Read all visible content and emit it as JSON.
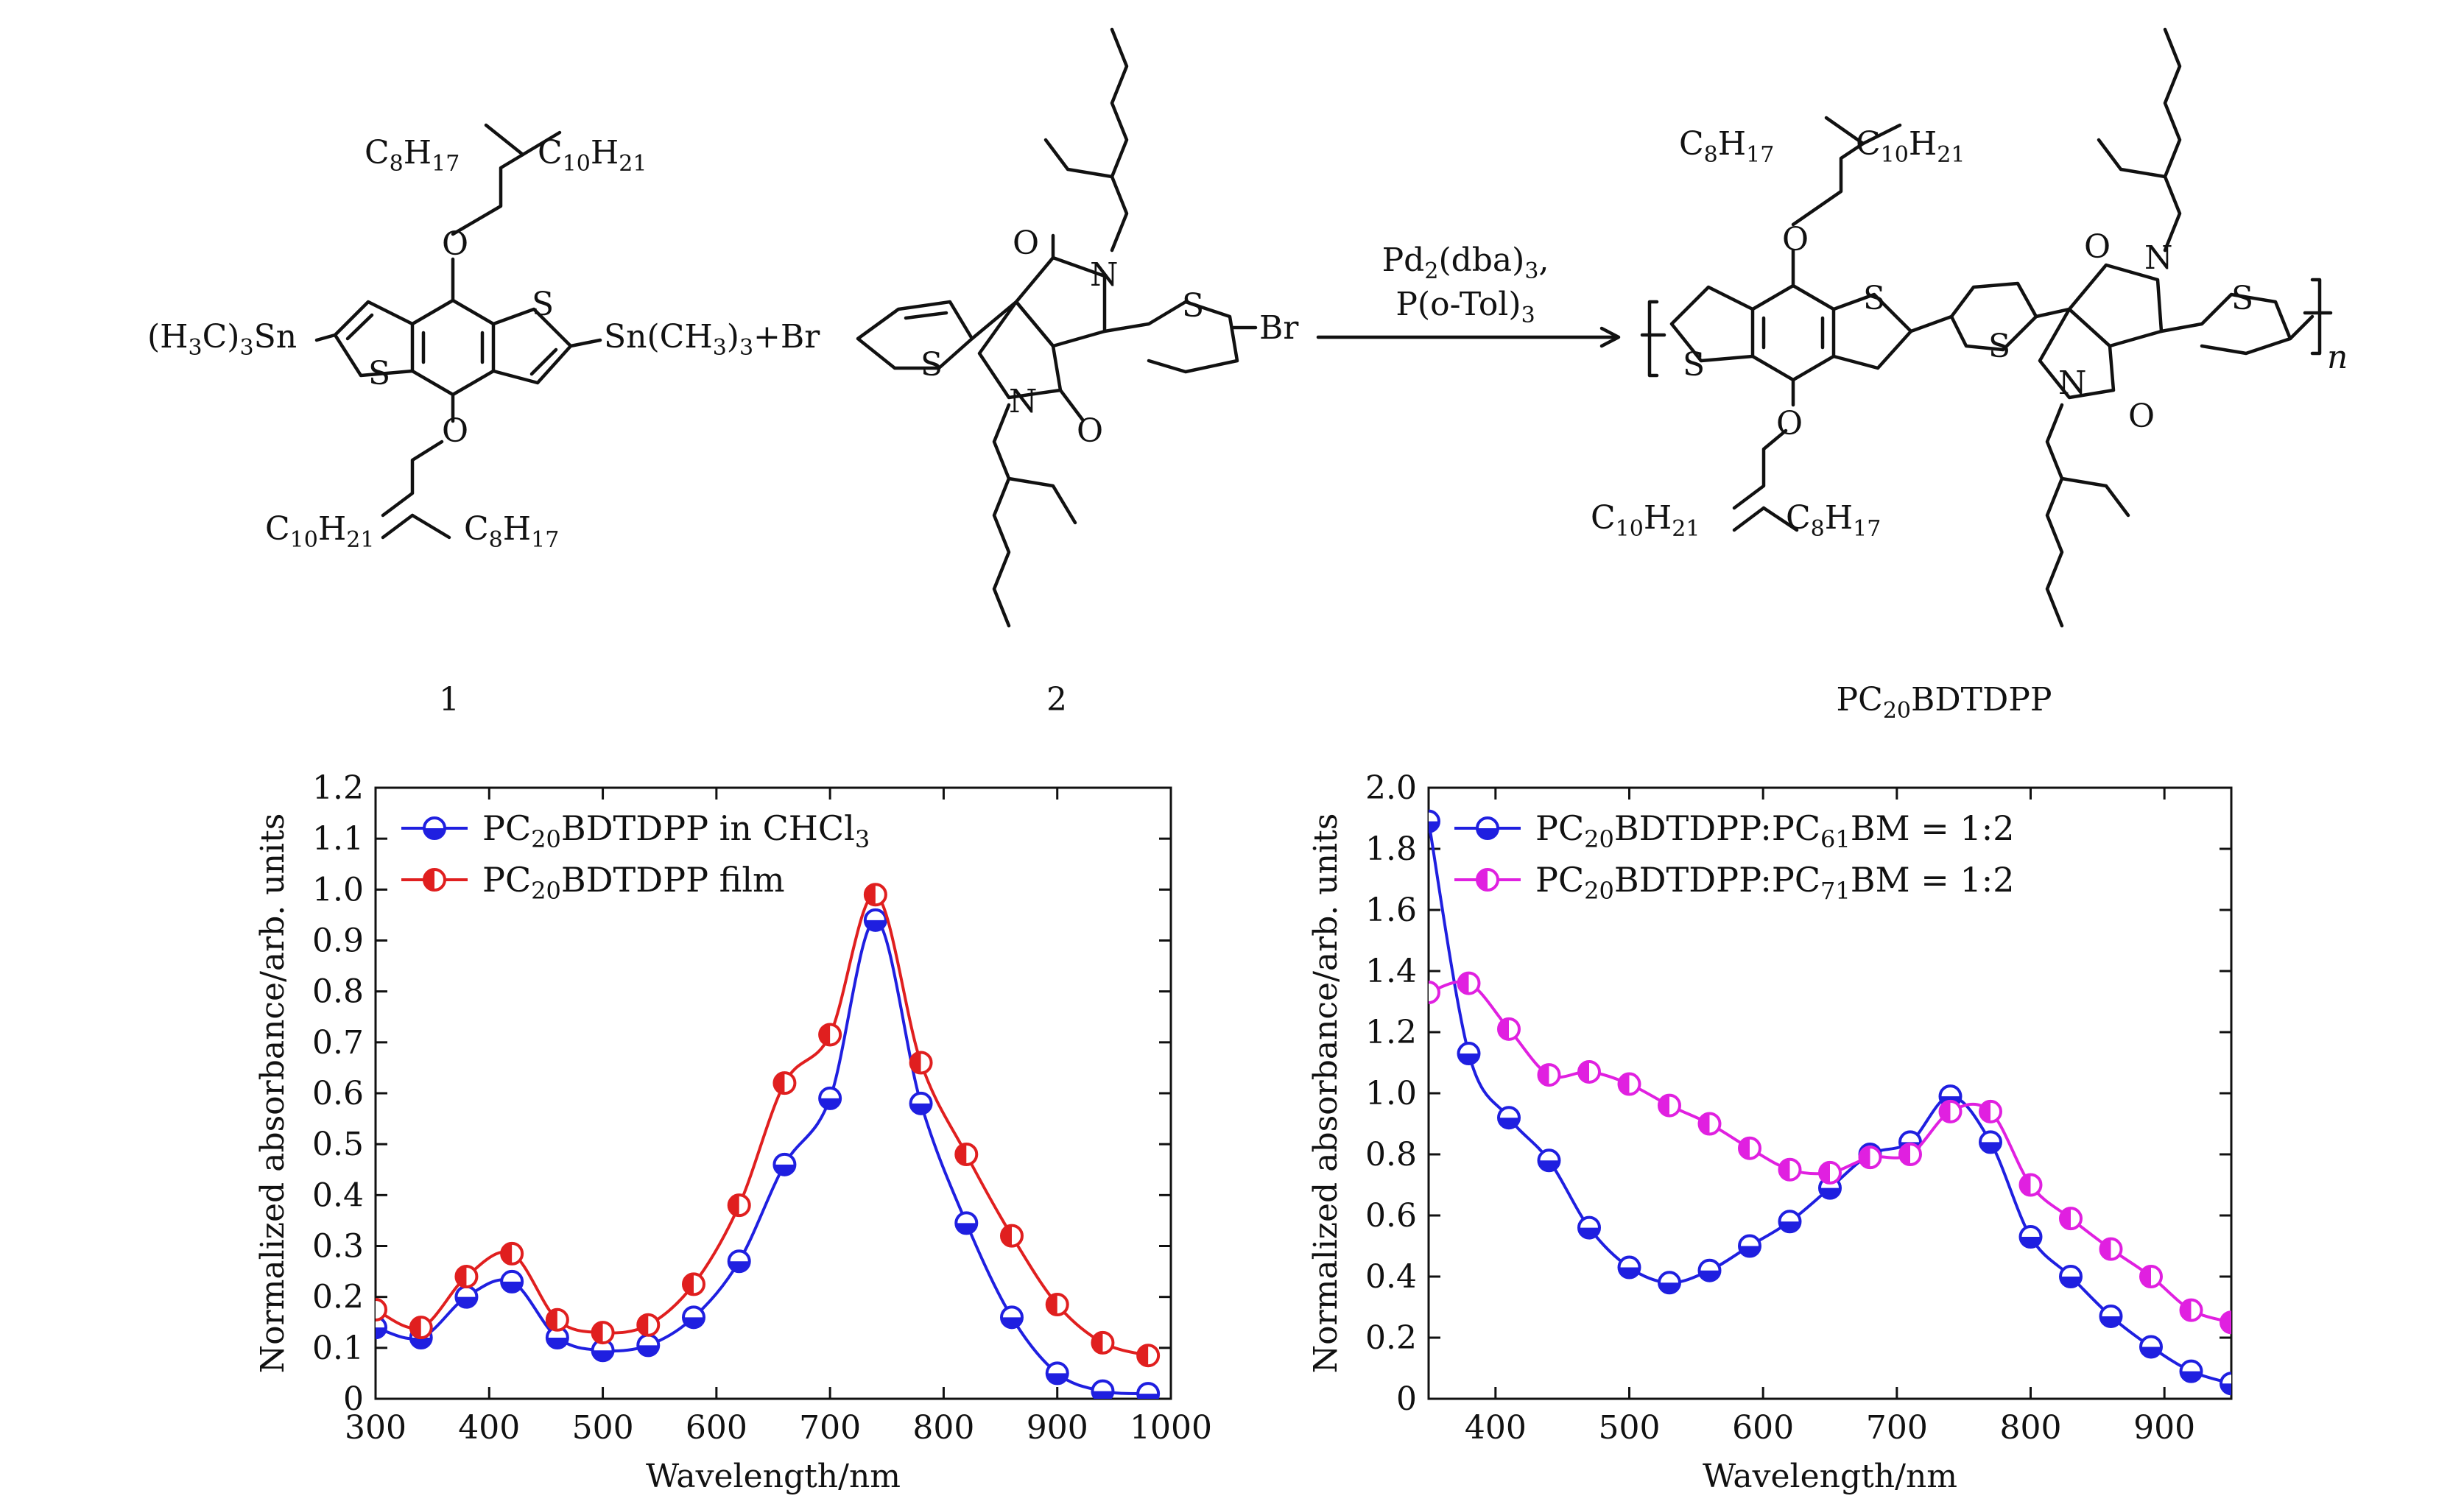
{
  "scheme": {
    "compound1_label": "1",
    "compound2_label": "2",
    "product_label": "PC20BDTDPP",
    "reagent_line1": "Pd2(dba)3,",
    "reagent_line2": "P(o-Tol)3",
    "subscript_n": "n",
    "labels": {
      "c8h17": "C8H17",
      "c10h21": "C10H21",
      "sn_left": "(H3C)3Sn",
      "sn_right": "Sn(CH3)3",
      "plus": "+",
      "br": "Br",
      "o": "O",
      "s": "S",
      "n": "N"
    }
  },
  "chart_data": [
    {
      "type": "line",
      "xlabel": "Wavelength/nm",
      "ylabel": "Normalized absorbance/arb. units",
      "xlim": [
        300,
        1000
      ],
      "ylim": [
        0,
        1.2
      ],
      "xticks": [
        300,
        400,
        500,
        600,
        700,
        800,
        900,
        1000
      ],
      "yticks": [
        0,
        0.1,
        0.2,
        0.3,
        0.4,
        0.5,
        0.6,
        0.7,
        0.8,
        0.9,
        1.0,
        1.1,
        1.2
      ],
      "legend_position": "top-left",
      "series": [
        {
          "name": "PC20BDTDPP in CHCl3",
          "color": "#1f1fe0",
          "marker": "half-filled-circle",
          "x": [
            300,
            340,
            380,
            420,
            460,
            500,
            540,
            580,
            620,
            660,
            700,
            740,
            780,
            820,
            860,
            900,
            940,
            980
          ],
          "y": [
            0.14,
            0.12,
            0.2,
            0.23,
            0.12,
            0.095,
            0.105,
            0.16,
            0.27,
            0.46,
            0.59,
            0.94,
            0.58,
            0.345,
            0.16,
            0.05,
            0.015,
            0.01
          ]
        },
        {
          "name": "PC20BDTDPP film",
          "color": "#e01f1f",
          "marker": "half-filled-circle",
          "x": [
            300,
            340,
            380,
            420,
            460,
            500,
            540,
            580,
            620,
            660,
            700,
            740,
            780,
            820,
            860,
            900,
            940,
            980
          ],
          "y": [
            0.175,
            0.14,
            0.24,
            0.285,
            0.155,
            0.13,
            0.145,
            0.225,
            0.38,
            0.62,
            0.715,
            0.99,
            0.66,
            0.48,
            0.32,
            0.185,
            0.11,
            0.085
          ]
        }
      ]
    },
    {
      "type": "line",
      "xlabel": "Wavelength/nm",
      "ylabel": "Normalized absorbance/arb. units",
      "xlim": [
        350,
        950
      ],
      "ylim": [
        0,
        2.0
      ],
      "xticks": [
        400,
        500,
        600,
        700,
        800,
        900
      ],
      "yticks": [
        0,
        0.2,
        0.4,
        0.6,
        0.8,
        1.0,
        1.2,
        1.4,
        1.6,
        1.8,
        2.0
      ],
      "legend_position": "top-left",
      "series": [
        {
          "name": "PC20BDTDPP:PC61BM = 1:2",
          "color": "#1f1fe0",
          "marker": "half-filled-circle",
          "x": [
            350,
            380,
            410,
            440,
            470,
            500,
            530,
            560,
            590,
            620,
            650,
            680,
            710,
            740,
            770,
            800,
            830,
            860,
            890,
            920,
            950
          ],
          "y": [
            1.89,
            1.13,
            0.92,
            0.78,
            0.56,
            0.43,
            0.38,
            0.42,
            0.5,
            0.58,
            0.69,
            0.8,
            0.84,
            0.99,
            0.84,
            0.53,
            0.4,
            0.27,
            0.17,
            0.09,
            0.05
          ]
        },
        {
          "name": "PC20BDTDPP:PC71BM = 1:2",
          "color": "#e020e0",
          "marker": "half-filled-circle",
          "x": [
            350,
            380,
            410,
            440,
            470,
            500,
            530,
            560,
            590,
            620,
            650,
            680,
            710,
            740,
            770,
            800,
            830,
            860,
            890,
            920,
            950
          ],
          "y": [
            1.33,
            1.36,
            1.21,
            1.06,
            1.07,
            1.03,
            0.96,
            0.9,
            0.82,
            0.75,
            0.74,
            0.79,
            0.8,
            0.94,
            0.94,
            0.7,
            0.59,
            0.49,
            0.4,
            0.29,
            0.25
          ]
        }
      ]
    }
  ]
}
